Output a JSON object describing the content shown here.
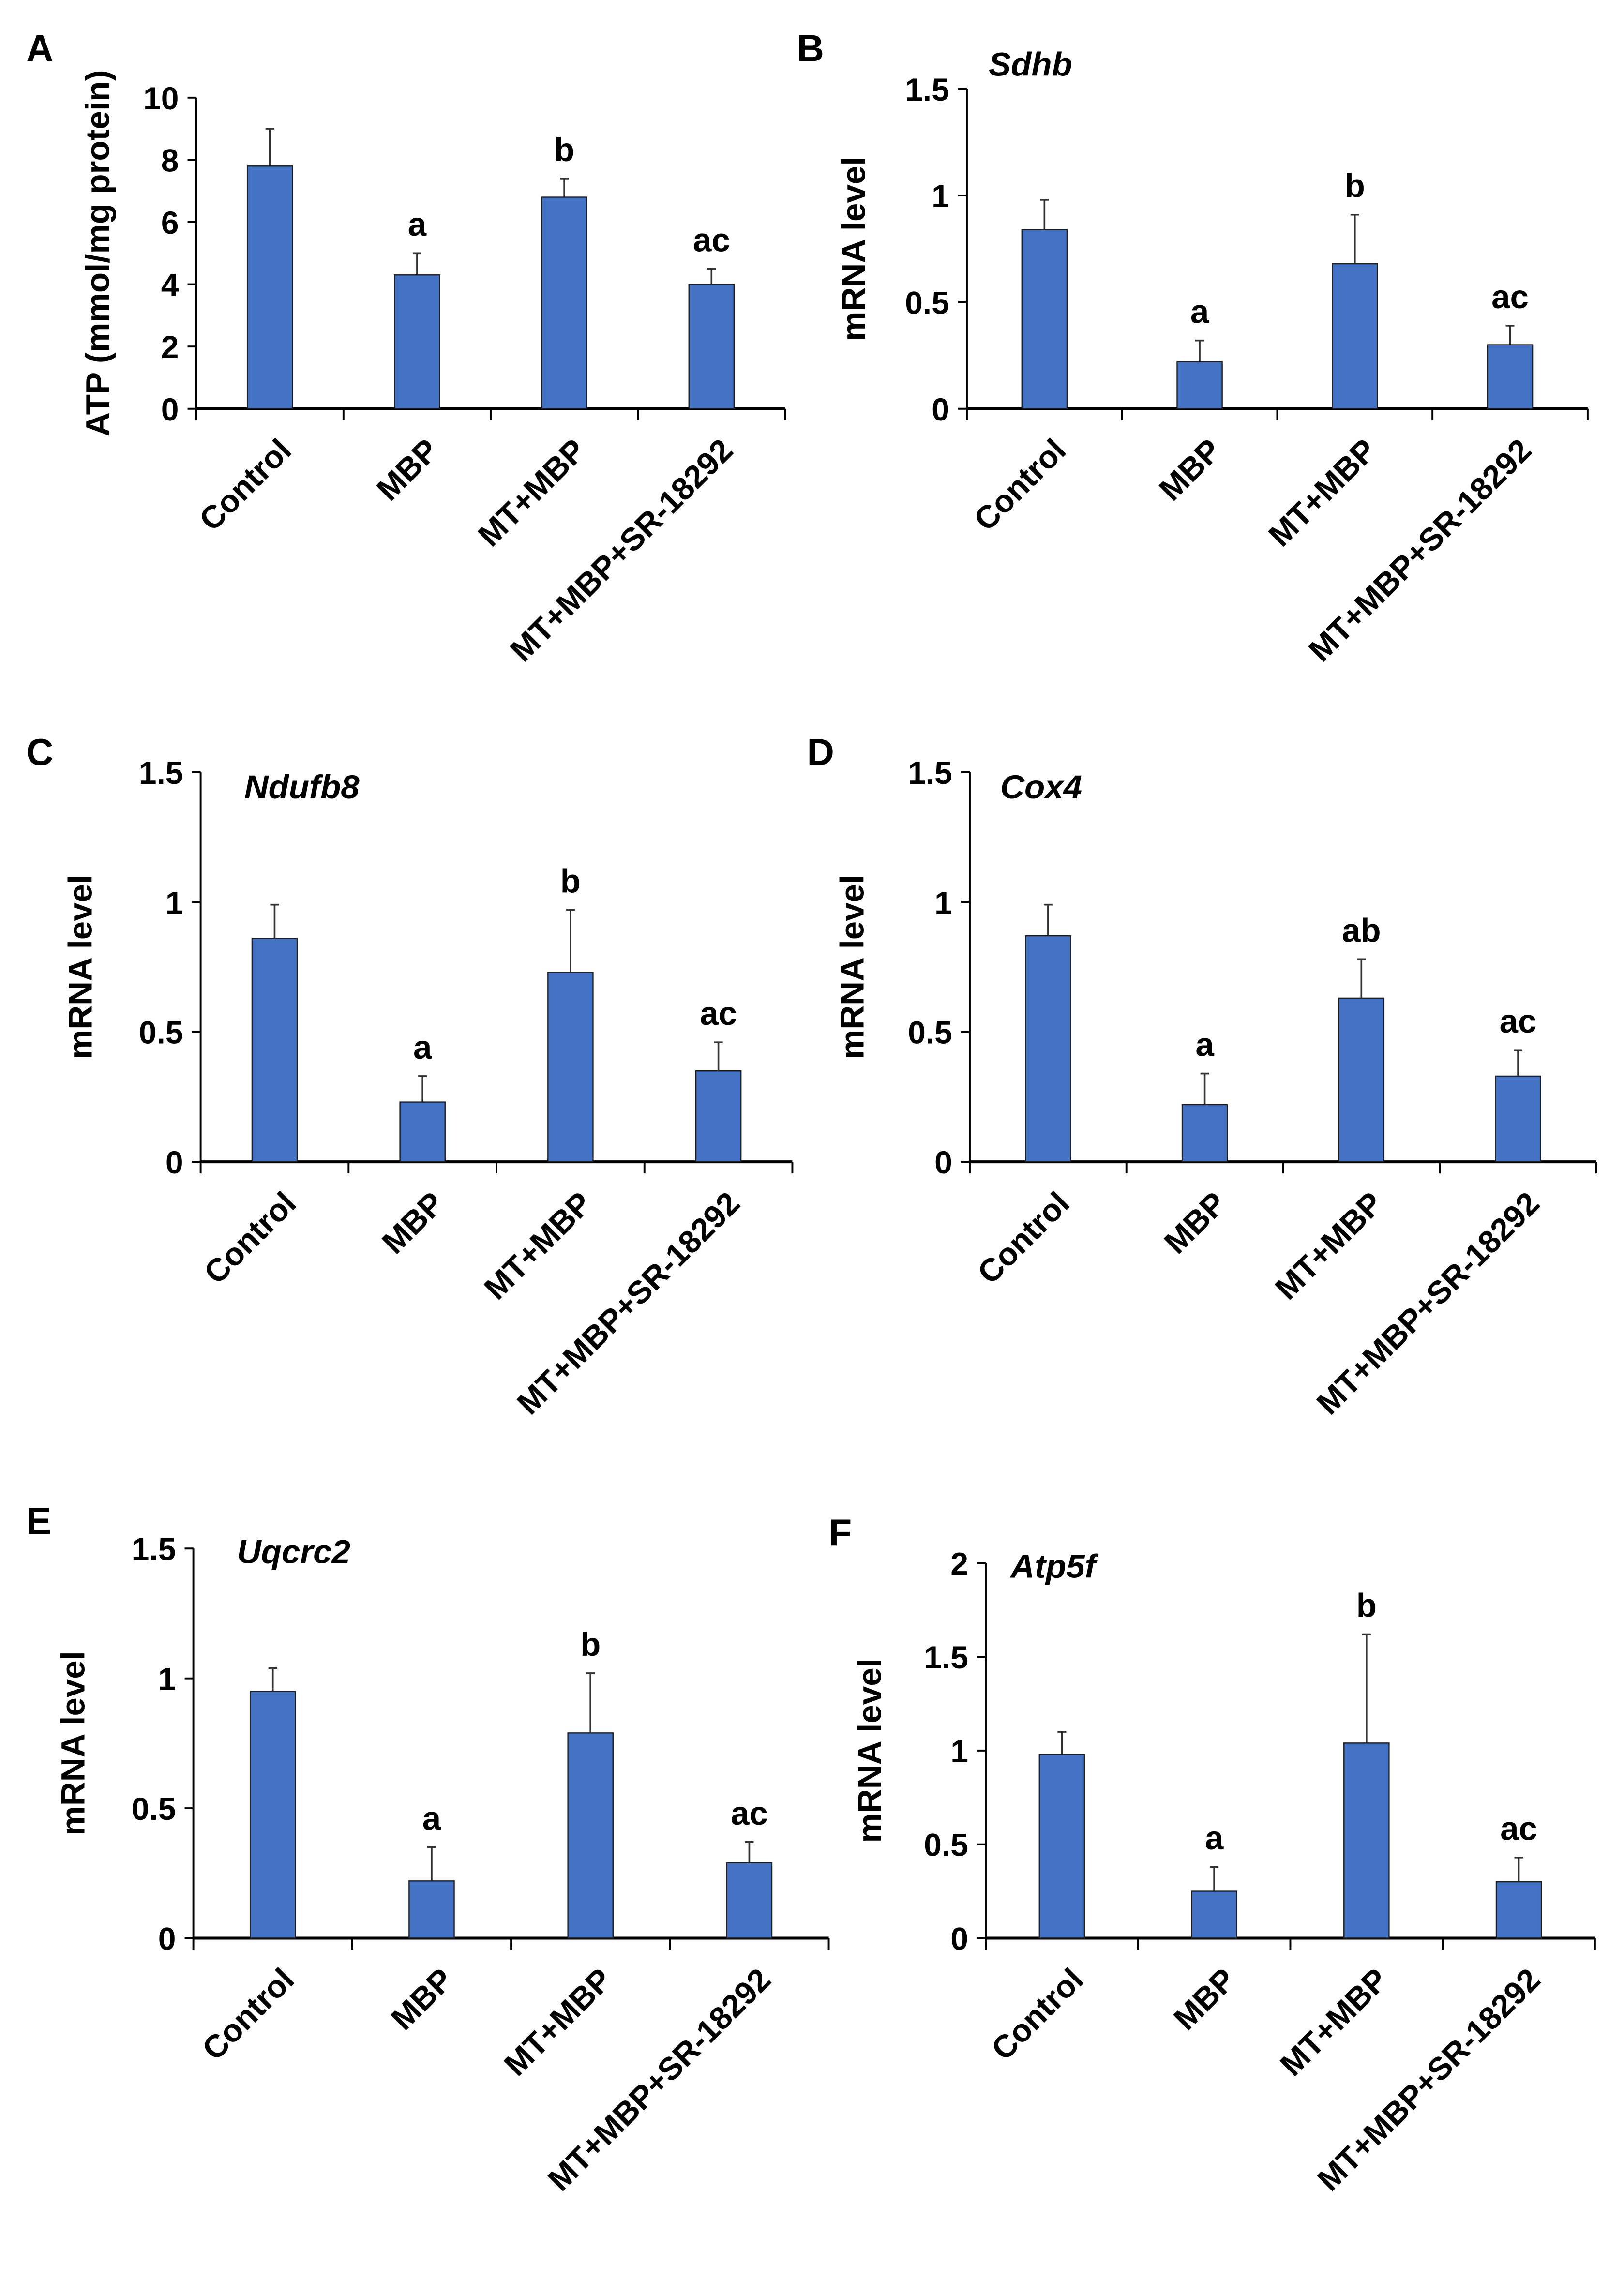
{
  "chart_data": [
    {
      "panel": "A",
      "type": "bar",
      "title": "",
      "ylabel": "ATP (mmol/mg protein)",
      "ylim": [
        0,
        10
      ],
      "yticks": [
        "0",
        "2",
        "4",
        "6",
        "8",
        "10"
      ],
      "ytick_values": [
        0,
        2,
        4,
        6,
        8,
        10
      ],
      "categories": [
        "Control",
        "MBP",
        "MT+MBP",
        "MT+MBP+SR-18292"
      ],
      "values": [
        7.8,
        4.3,
        6.8,
        4.0
      ],
      "errors": [
        1.2,
        0.7,
        0.6,
        0.5
      ],
      "annotations": [
        "",
        "a",
        "b",
        "ac"
      ]
    },
    {
      "panel": "B",
      "type": "bar",
      "title": "Sdhb",
      "ylabel": "mRNA level",
      "ylim": [
        0,
        1.5
      ],
      "yticks": [
        "0",
        "0.5",
        "1",
        "1.5"
      ],
      "ytick_values": [
        0,
        0.5,
        1,
        1.5
      ],
      "categories": [
        "Control",
        "MBP",
        "MT+MBP",
        "MT+MBP+SR-18292"
      ],
      "values": [
        0.84,
        0.22,
        0.68,
        0.3
      ],
      "errors": [
        0.14,
        0.1,
        0.23,
        0.09
      ],
      "annotations": [
        "",
        "a",
        "b",
        "ac"
      ]
    },
    {
      "panel": "C",
      "type": "bar",
      "title": "Ndufb8",
      "ylabel": "mRNA level",
      "ylim": [
        0,
        1.5
      ],
      "yticks": [
        "0",
        "0.5",
        "1",
        "1.5"
      ],
      "ytick_values": [
        0,
        0.5,
        1,
        1.5
      ],
      "categories": [
        "Control",
        "MBP",
        "MT+MBP",
        "MT+MBP+SR-18292"
      ],
      "values": [
        0.86,
        0.23,
        0.73,
        0.35
      ],
      "errors": [
        0.13,
        0.1,
        0.24,
        0.11
      ],
      "annotations": [
        "",
        "a",
        "b",
        "ac"
      ]
    },
    {
      "panel": "D",
      "type": "bar",
      "title": "Cox4",
      "ylabel": "mRNA level",
      "ylim": [
        0,
        1.5
      ],
      "yticks": [
        "0",
        "0.5",
        "1",
        "1.5"
      ],
      "ytick_values": [
        0,
        0.5,
        1,
        1.5
      ],
      "categories": [
        "Control",
        "MBP",
        "MT+MBP",
        "MT+MBP+SR-18292"
      ],
      "values": [
        0.87,
        0.22,
        0.63,
        0.33
      ],
      "errors": [
        0.12,
        0.12,
        0.15,
        0.1
      ],
      "annotations": [
        "",
        "a",
        "ab",
        "ac"
      ]
    },
    {
      "panel": "E",
      "type": "bar",
      "title": "Uqcrc2",
      "ylabel": "mRNA level",
      "ylim": [
        0,
        1.5
      ],
      "yticks": [
        "0",
        "0.5",
        "1",
        "1.5"
      ],
      "ytick_values": [
        0,
        0.5,
        1,
        1.5
      ],
      "categories": [
        "Control",
        "MBP",
        "MT+MBP",
        "MT+MBP+SR-18292"
      ],
      "values": [
        0.95,
        0.22,
        0.79,
        0.29
      ],
      "errors": [
        0.09,
        0.13,
        0.23,
        0.08
      ],
      "annotations": [
        "",
        "a",
        "b",
        "ac"
      ]
    },
    {
      "panel": "F",
      "type": "bar",
      "title": "Atp5f",
      "ylabel": "mRNA level",
      "ylim": [
        0,
        2
      ],
      "yticks": [
        "0",
        "0.5",
        "1",
        "1.5",
        "2"
      ],
      "ytick_values": [
        0,
        0.5,
        1,
        1.5,
        2
      ],
      "categories": [
        "Control",
        "MBP",
        "MT+MBP",
        "MT+MBP+SR-18292"
      ],
      "values": [
        0.98,
        0.25,
        1.04,
        0.3
      ],
      "errors": [
        0.12,
        0.13,
        0.58,
        0.13
      ],
      "annotations": [
        "",
        "a",
        "b",
        "ac"
      ]
    }
  ],
  "colors": {
    "bar": "#4472C4",
    "bar_edge": "#1f1f1f"
  }
}
